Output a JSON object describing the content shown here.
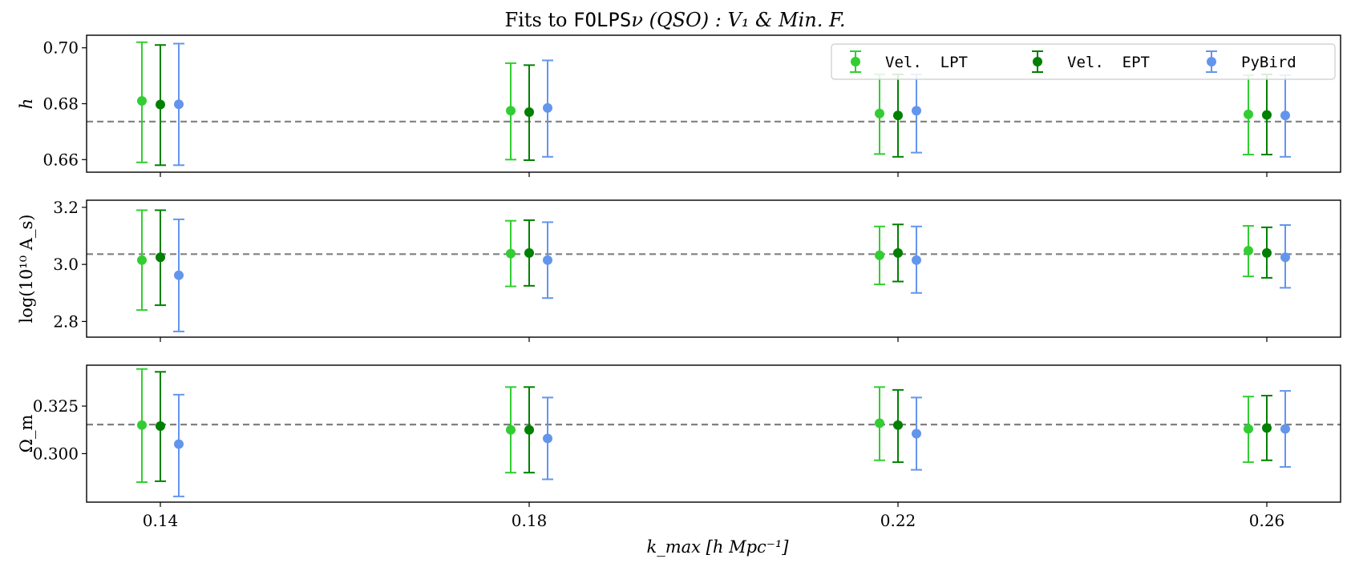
{
  "chart_data": {
    "type": "errorbar",
    "title_prefix": "Fits to ",
    "title_code": "FOLPS",
    "title_suffix": "ν (QSO) : V₁ & Min. F.",
    "xlabel": "k_max [h Mpc⁻¹]",
    "x_ticks": [
      "0.14",
      "0.18",
      "0.22",
      "0.26"
    ],
    "x_values": [
      0.14,
      0.18,
      0.22,
      0.26
    ],
    "x_offset": 0.002,
    "xlim": [
      0.132,
      0.268
    ],
    "legend": {
      "location": "upper-right",
      "entries": [
        "Vel.  LPT",
        "Vel.  EPT",
        "PyBird"
      ]
    },
    "series": [
      {
        "name": "Vel.  LPT",
        "color": "#32cd32"
      },
      {
        "name": "Vel.  EPT",
        "color": "#008000"
      },
      {
        "name": "PyBird",
        "color": "#6495ed"
      }
    ],
    "panels": [
      {
        "ylabel": "h",
        "ylim": [
          0.6555,
          0.7045
        ],
        "yticks": [
          0.66,
          0.68,
          0.7
        ],
        "ytick_labels": [
          "0.66",
          "0.68",
          "0.70"
        ],
        "reference": 0.6736,
        "points": [
          [
            [
              0.681,
              0.659,
              0.702
            ],
            [
              0.6797,
              0.658,
              0.701
            ],
            [
              0.6798,
              0.658,
              0.7015
            ]
          ],
          [
            [
              0.6775,
              0.66,
              0.6945
            ],
            [
              0.677,
              0.6598,
              0.6938
            ],
            [
              0.6785,
              0.661,
              0.6955
            ]
          ],
          [
            [
              0.6765,
              0.662,
              0.6905
            ],
            [
              0.6758,
              0.661,
              0.6905
            ],
            [
              0.6775,
              0.6625,
              0.6905
            ]
          ],
          [
            [
              0.6762,
              0.6618,
              0.6902
            ],
            [
              0.676,
              0.6618,
              0.6905
            ],
            [
              0.6758,
              0.661,
              0.6902
            ]
          ]
        ]
      },
      {
        "ylabel": "log(10¹⁰ A_s)",
        "ylim": [
          2.745,
          3.225
        ],
        "yticks": [
          2.8,
          3.0,
          3.2
        ],
        "ytick_labels": [
          "2.8",
          "3.0",
          "3.2"
        ],
        "reference": 3.036,
        "points": [
          [
            [
              3.015,
              2.84,
              3.19
            ],
            [
              3.025,
              2.857,
              3.19
            ],
            [
              2.962,
              2.765,
              3.158
            ]
          ],
          [
            [
              3.038,
              2.923,
              3.153
            ],
            [
              3.04,
              2.925,
              3.155
            ],
            [
              3.015,
              2.882,
              3.148
            ]
          ],
          [
            [
              3.032,
              2.93,
              3.133
            ],
            [
              3.04,
              2.94,
              3.14
            ],
            [
              3.015,
              2.9,
              3.133
            ]
          ],
          [
            [
              3.048,
              2.958,
              3.135
            ],
            [
              3.04,
              2.953,
              3.13
            ],
            [
              3.025,
              2.918,
              3.138
            ]
          ]
        ]
      },
      {
        "ylabel": "Ω_m",
        "ylim": [
          0.2745,
          0.3465
        ],
        "yticks": [
          0.3,
          0.325
        ],
        "ytick_labels": [
          "0.300",
          "0.325"
        ],
        "reference": 0.3153,
        "points": [
          [
            [
              0.315,
              0.285,
              0.3445
            ],
            [
              0.3145,
              0.2855,
              0.343
            ],
            [
              0.305,
              0.2775,
              0.331
            ]
          ],
          [
            [
              0.3125,
              0.29,
              0.335
            ],
            [
              0.3125,
              0.29,
              0.335
            ],
            [
              0.308,
              0.2865,
              0.3295
            ]
          ],
          [
            [
              0.316,
              0.2965,
              0.335
            ],
            [
              0.315,
              0.2955,
              0.3335
            ],
            [
              0.3105,
              0.2915,
              0.3295
            ]
          ],
          [
            [
              0.313,
              0.2955,
              0.33
            ],
            [
              0.3135,
              0.2965,
              0.3305
            ],
            [
              0.313,
              0.293,
              0.333
            ]
          ]
        ]
      }
    ]
  }
}
